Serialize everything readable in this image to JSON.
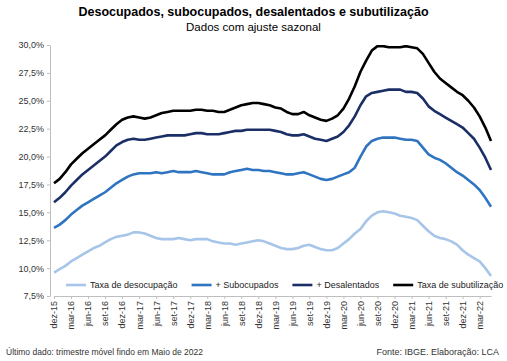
{
  "chart_data": {
    "type": "line",
    "title": "Desocupados, subocupados, desalentados e subutilização",
    "subtitle": "Dados com ajuste sazonal",
    "annotations": [
      "Último dado: trimestre móvel findo em Maio de 2022",
      "Fonte: IBGE. Elaboração: LCA"
    ],
    "categories": [
      "dez-15",
      null,
      null,
      "mar-16",
      null,
      null,
      "jun-16",
      null,
      null,
      "set-16",
      null,
      null,
      "dez-16",
      null,
      null,
      "mar-17",
      null,
      null,
      "jun-17",
      null,
      null,
      "set-17",
      null,
      null,
      "dez-17",
      null,
      null,
      "mar-18",
      null,
      null,
      "jun-18",
      null,
      null,
      "set-18",
      null,
      null,
      "dez-18",
      null,
      null,
      "mar-19",
      null,
      null,
      "jun-19",
      null,
      null,
      "set-19",
      null,
      null,
      "dez-19",
      null,
      null,
      "mar-20",
      null,
      null,
      "jun-20",
      null,
      null,
      "set-20",
      null,
      null,
      "dez-20",
      null,
      null,
      "mar-21",
      null,
      null,
      "jun-21",
      null,
      null,
      "set-21",
      null,
      null,
      "dez-21",
      null,
      null,
      "mar-22",
      null,
      null
    ],
    "series": [
      {
        "name": "Taxa de desocupação",
        "color": "#a7c5e8",
        "values": [
          9.6,
          9.9,
          10.2,
          10.6,
          10.9,
          11.2,
          11.5,
          11.8,
          12.0,
          12.3,
          12.6,
          12.8,
          12.9,
          13.0,
          13.2,
          13.2,
          13.1,
          12.9,
          12.7,
          12.6,
          12.6,
          12.6,
          12.7,
          12.6,
          12.5,
          12.6,
          12.6,
          12.6,
          12.4,
          12.3,
          12.2,
          12.2,
          12.1,
          12.2,
          12.3,
          12.4,
          12.5,
          12.4,
          12.2,
          12.0,
          11.8,
          11.7,
          11.7,
          11.8,
          12.0,
          12.1,
          11.9,
          11.7,
          11.6,
          11.6,
          11.8,
          12.2,
          12.6,
          13.1,
          13.5,
          14.2,
          14.7,
          15.0,
          15.1,
          15.0,
          14.9,
          14.7,
          14.6,
          14.5,
          14.3,
          13.8,
          13.3,
          12.9,
          12.7,
          12.6,
          12.4,
          12.1,
          11.6,
          11.2,
          10.9,
          10.6,
          10.0,
          9.3
        ]
      },
      {
        "name": "+ Subocupados",
        "color": "#2e74c0",
        "values": [
          13.6,
          13.9,
          14.3,
          14.8,
          15.2,
          15.6,
          15.9,
          16.2,
          16.5,
          16.8,
          17.2,
          17.6,
          17.9,
          18.2,
          18.4,
          18.5,
          18.5,
          18.5,
          18.6,
          18.5,
          18.6,
          18.7,
          18.6,
          18.6,
          18.6,
          18.7,
          18.6,
          18.5,
          18.4,
          18.4,
          18.4,
          18.6,
          18.7,
          18.8,
          18.9,
          18.8,
          18.8,
          18.7,
          18.7,
          18.6,
          18.5,
          18.4,
          18.4,
          18.5,
          18.6,
          18.4,
          18.2,
          18.0,
          17.9,
          18.0,
          18.2,
          18.4,
          18.6,
          19.0,
          20.0,
          20.9,
          21.4,
          21.6,
          21.7,
          21.7,
          21.7,
          21.6,
          21.5,
          21.5,
          21.4,
          20.8,
          20.2,
          19.9,
          19.7,
          19.4,
          19.0,
          18.6,
          18.3,
          17.9,
          17.5,
          17.0,
          16.3,
          15.5
        ]
      },
      {
        "name": "+ Desalentados",
        "color": "#1b2f66",
        "values": [
          15.9,
          16.3,
          16.8,
          17.4,
          17.9,
          18.4,
          18.8,
          19.2,
          19.6,
          20.0,
          20.5,
          21.0,
          21.3,
          21.5,
          21.6,
          21.5,
          21.5,
          21.6,
          21.7,
          21.8,
          21.9,
          21.9,
          21.9,
          21.9,
          22.0,
          22.1,
          22.1,
          22.0,
          22.0,
          22.0,
          22.1,
          22.2,
          22.3,
          22.3,
          22.4,
          22.4,
          22.4,
          22.4,
          22.4,
          22.3,
          22.2,
          22.0,
          21.9,
          21.9,
          22.0,
          21.8,
          21.6,
          21.5,
          21.4,
          21.6,
          21.8,
          22.2,
          22.8,
          23.6,
          24.6,
          25.4,
          25.7,
          25.8,
          25.9,
          26.0,
          26.0,
          26.0,
          25.8,
          25.8,
          25.7,
          25.2,
          24.5,
          24.1,
          23.8,
          23.5,
          23.2,
          22.9,
          22.6,
          22.1,
          21.6,
          20.8,
          19.9,
          18.8
        ]
      },
      {
        "name": "Taxa de subutilização",
        "color": "#000000",
        "values": [
          17.6,
          18.0,
          18.6,
          19.3,
          19.8,
          20.3,
          20.7,
          21.1,
          21.5,
          21.9,
          22.4,
          22.9,
          23.3,
          23.5,
          23.6,
          23.5,
          23.4,
          23.5,
          23.7,
          23.9,
          24.0,
          24.1,
          24.1,
          24.1,
          24.1,
          24.2,
          24.2,
          24.1,
          24.1,
          24.0,
          24.0,
          24.2,
          24.4,
          24.6,
          24.7,
          24.8,
          24.8,
          24.7,
          24.6,
          24.4,
          24.3,
          24.0,
          23.8,
          23.8,
          24.0,
          23.7,
          23.5,
          23.3,
          23.2,
          23.4,
          23.7,
          24.3,
          25.2,
          26.3,
          27.6,
          28.6,
          29.5,
          29.9,
          29.9,
          29.8,
          29.8,
          29.8,
          29.9,
          29.8,
          29.7,
          29.2,
          28.4,
          27.6,
          27.0,
          26.6,
          26.2,
          25.8,
          25.5,
          25.0,
          24.4,
          23.6,
          22.6,
          21.4
        ]
      }
    ],
    "ylim": [
      7.5,
      30
    ],
    "yticks": [
      {
        "value": 7.5,
        "label": "7,5%"
      },
      {
        "value": 10,
        "label": "10,0%"
      },
      {
        "value": 12.5,
        "label": "12,5%"
      },
      {
        "value": 15,
        "label": "15,0%"
      },
      {
        "value": 17.5,
        "label": "17,5%"
      },
      {
        "value": 20,
        "label": "20,0%"
      },
      {
        "value": 22.5,
        "label": "22,5%"
      },
      {
        "value": 25,
        "label": "25,0%"
      },
      {
        "value": 27.5,
        "label": "27,5%"
      },
      {
        "value": 30,
        "label": "30,0%"
      }
    ],
    "grid": false,
    "legend": "bottom"
  }
}
